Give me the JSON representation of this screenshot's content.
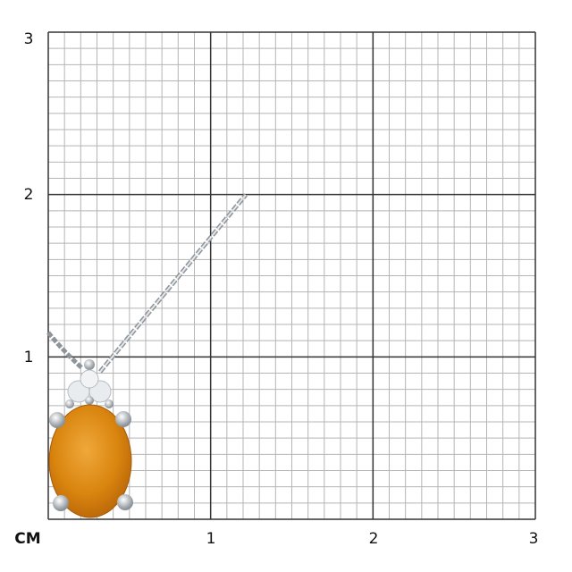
{
  "scale": {
    "unit_label": "CM",
    "y_labels": [
      "1",
      "2",
      "3"
    ],
    "x_labels": [
      "1",
      "2",
      "3"
    ],
    "range_cm": [
      0,
      3
    ],
    "minor_divisions_per_cm": 10
  },
  "product": {
    "type": "pendant-on-chain",
    "gem_color": "#d9850f",
    "metal_color": "#c9ced3"
  }
}
